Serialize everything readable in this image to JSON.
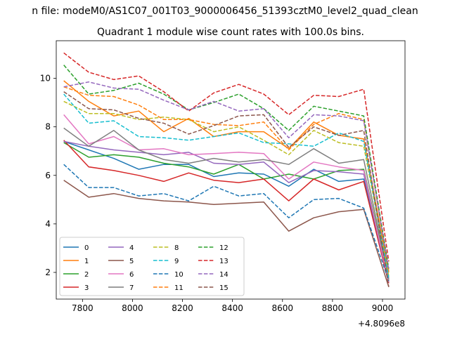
{
  "chart_data": {
    "type": "line",
    "suptitle": "n file: modeM0/AS1C07_001T03_9000006456_51393cztM0_level2_quad_clean",
    "title": "Quadrant 1 module wise count rates with 100.0s bins.",
    "xlabel": "",
    "ylabel": "",
    "x_offset_label": "+4.8096e8",
    "x_ticks": [
      7800,
      8000,
      8200,
      8400,
      8600,
      8800,
      9000
    ],
    "y_ticks": [
      2,
      4,
      6,
      8,
      10
    ],
    "xlim": [
      7695,
      9090
    ],
    "ylim": [
      0.9,
      11.55
    ],
    "legend_position": "lower-left",
    "legend_columns": 4,
    "x": [
      7725,
      7825,
      7925,
      8025,
      8125,
      8225,
      8325,
      8425,
      8525,
      8625,
      8725,
      8825,
      8925,
      9025
    ],
    "series": [
      {
        "name": "0",
        "color": "#1f77b4",
        "dash": "solid",
        "values": [
          7.4,
          7.05,
          6.7,
          6.25,
          6.45,
          6.45,
          5.95,
          6.1,
          6.05,
          5.55,
          6.25,
          5.75,
          5.85,
          1.6
        ]
      },
      {
        "name": "1",
        "color": "#ff7f0e",
        "dash": "solid",
        "values": [
          9.9,
          9.05,
          8.45,
          8.65,
          7.8,
          8.35,
          7.6,
          7.8,
          7.8,
          7.1,
          8.2,
          7.65,
          7.5,
          2.0
        ]
      },
      {
        "name": "2",
        "color": "#2ca02c",
        "dash": "solid",
        "values": [
          7.35,
          6.75,
          6.85,
          6.75,
          6.5,
          6.35,
          6.05,
          6.45,
          5.85,
          6.05,
          5.85,
          6.2,
          6.25,
          1.7
        ]
      },
      {
        "name": "3",
        "color": "#d62728",
        "dash": "solid",
        "values": [
          7.45,
          6.35,
          6.2,
          6.0,
          5.75,
          6.1,
          5.8,
          5.7,
          5.85,
          4.95,
          5.85,
          5.4,
          5.75,
          1.55
        ]
      },
      {
        "name": "4",
        "color": "#9467bd",
        "dash": "solid",
        "values": [
          7.4,
          7.2,
          7.05,
          6.95,
          6.85,
          6.95,
          6.5,
          6.45,
          6.55,
          5.7,
          6.2,
          6.15,
          6.05,
          1.6
        ]
      },
      {
        "name": "5",
        "color": "#8c564b",
        "dash": "solid",
        "values": [
          5.8,
          5.1,
          5.25,
          5.05,
          4.95,
          4.9,
          4.8,
          4.85,
          4.9,
          3.7,
          4.25,
          4.5,
          4.6,
          1.4
        ]
      },
      {
        "name": "6",
        "color": "#e377c2",
        "dash": "solid",
        "values": [
          8.5,
          7.3,
          7.6,
          7.05,
          7.1,
          6.85,
          6.9,
          6.95,
          6.9,
          5.85,
          6.55,
          6.35,
          6.2,
          1.6
        ]
      },
      {
        "name": "7",
        "color": "#7f7f7f",
        "dash": "solid",
        "values": [
          7.95,
          7.2,
          7.85,
          7.05,
          6.65,
          6.5,
          6.7,
          6.55,
          6.65,
          6.45,
          7.1,
          6.5,
          6.65,
          1.75
        ]
      },
      {
        "name": "8",
        "color": "#bcbd22",
        "dash": "dashed",
        "values": [
          9.05,
          8.55,
          8.55,
          8.3,
          8.4,
          8.3,
          7.8,
          8.0,
          7.45,
          6.85,
          7.85,
          7.35,
          7.2,
          1.85
        ]
      },
      {
        "name": "9",
        "color": "#17becf",
        "dash": "dashed",
        "values": [
          9.35,
          8.15,
          8.25,
          7.6,
          7.55,
          7.45,
          7.6,
          7.75,
          7.35,
          7.3,
          7.2,
          7.75,
          7.4,
          1.8
        ]
      },
      {
        "name": "10",
        "color": "#1f77b4",
        "dash": "dashed",
        "values": [
          6.45,
          5.5,
          5.5,
          5.15,
          5.25,
          4.95,
          5.55,
          5.15,
          5.25,
          4.25,
          5.0,
          5.05,
          4.65,
          1.65
        ]
      },
      {
        "name": "11",
        "color": "#ff7f0e",
        "dash": "dashed",
        "values": [
          9.65,
          9.3,
          9.25,
          8.9,
          8.3,
          8.3,
          8.1,
          8.05,
          8.2,
          7.05,
          8.1,
          8.55,
          8.3,
          2.05
        ]
      },
      {
        "name": "12",
        "color": "#2ca02c",
        "dash": "dashed",
        "values": [
          10.55,
          9.35,
          9.5,
          9.8,
          9.35,
          8.7,
          9.0,
          9.35,
          8.75,
          7.85,
          8.85,
          8.65,
          8.45,
          2.15
        ]
      },
      {
        "name": "13",
        "color": "#d62728",
        "dash": "dashed",
        "values": [
          11.05,
          10.25,
          9.95,
          10.1,
          9.45,
          8.65,
          9.4,
          9.75,
          9.35,
          8.5,
          9.3,
          9.25,
          9.55,
          2.45
        ]
      },
      {
        "name": "14",
        "color": "#9467bd",
        "dash": "dashed",
        "values": [
          9.65,
          9.85,
          9.6,
          9.55,
          9.1,
          8.7,
          9.05,
          8.65,
          8.75,
          7.55,
          8.5,
          8.45,
          8.25,
          2.1
        ]
      },
      {
        "name": "15",
        "color": "#8c564b",
        "dash": "dashed",
        "values": [
          9.45,
          8.75,
          8.7,
          8.35,
          8.15,
          7.7,
          8.05,
          8.45,
          8.5,
          7.15,
          8.0,
          7.65,
          7.85,
          1.4
        ]
      }
    ]
  }
}
